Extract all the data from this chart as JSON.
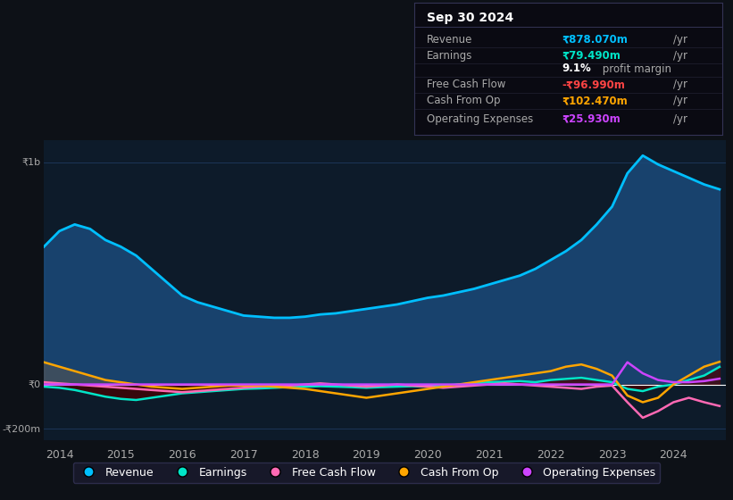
{
  "bg_color": "#0d1117",
  "plot_bg_color": "#0d1b2a",
  "grid_color": "#1e3a5f",
  "title_box": {
    "date": "Sep 30 2024",
    "rows": [
      {
        "label": "Revenue",
        "value": "₹878.070m /yr",
        "value_color": "#00bfff"
      },
      {
        "label": "Earnings",
        "value": "₹79.490m /yr",
        "value_color": "#00e5c8"
      },
      {
        "label": "",
        "value": "9.1% profit margin",
        "value_color": "#ffffff"
      },
      {
        "label": "Free Cash Flow",
        "value": "-₹96.990m /yr",
        "value_color": "#ff4444"
      },
      {
        "label": "Cash From Op",
        "value": "₹102.470m /yr",
        "value_color": "#ffa500"
      },
      {
        "label": "Operating Expenses",
        "value": "₹25.930m /yr",
        "value_color": "#cc44ff"
      }
    ]
  },
  "years": [
    2013.75,
    2014.0,
    2014.25,
    2014.5,
    2014.75,
    2015.0,
    2015.25,
    2015.5,
    2015.75,
    2016.0,
    2016.25,
    2016.5,
    2016.75,
    2017.0,
    2017.25,
    2017.5,
    2017.75,
    2018.0,
    2018.25,
    2018.5,
    2018.75,
    2019.0,
    2019.25,
    2019.5,
    2019.75,
    2020.0,
    2020.25,
    2020.5,
    2020.75,
    2021.0,
    2021.25,
    2021.5,
    2021.75,
    2022.0,
    2022.25,
    2022.5,
    2022.75,
    2023.0,
    2023.25,
    2023.5,
    2023.75,
    2024.0,
    2024.25,
    2024.5,
    2024.75
  ],
  "revenue": [
    620,
    690,
    720,
    700,
    650,
    620,
    580,
    520,
    460,
    400,
    370,
    350,
    330,
    310,
    305,
    300,
    300,
    305,
    315,
    320,
    330,
    340,
    350,
    360,
    375,
    390,
    400,
    415,
    430,
    450,
    470,
    490,
    520,
    560,
    600,
    650,
    720,
    800,
    950,
    1030,
    990,
    960,
    930,
    900,
    878
  ],
  "earnings": [
    -10,
    -15,
    -25,
    -40,
    -55,
    -65,
    -70,
    -60,
    -50,
    -40,
    -35,
    -30,
    -25,
    -20,
    -18,
    -15,
    -12,
    -10,
    -8,
    -10,
    -12,
    -15,
    -12,
    -10,
    -8,
    -10,
    -5,
    0,
    5,
    10,
    12,
    15,
    10,
    20,
    25,
    30,
    20,
    10,
    -20,
    -30,
    -10,
    0,
    20,
    40,
    79
  ],
  "free_cash_flow": [
    10,
    5,
    0,
    -5,
    -10,
    -15,
    -20,
    -25,
    -30,
    -35,
    -30,
    -25,
    -20,
    -15,
    -10,
    -8,
    -5,
    0,
    5,
    0,
    -5,
    -10,
    -5,
    0,
    -5,
    -10,
    -15,
    -10,
    -5,
    0,
    5,
    0,
    -5,
    -10,
    -15,
    -20,
    -10,
    -5,
    -80,
    -150,
    -120,
    -80,
    -60,
    -80,
    -97
  ],
  "cash_from_op": [
    100,
    80,
    60,
    40,
    20,
    10,
    0,
    -10,
    -15,
    -20,
    -15,
    -10,
    -5,
    -5,
    -5,
    -10,
    -15,
    -20,
    -30,
    -40,
    -50,
    -60,
    -50,
    -40,
    -30,
    -20,
    -10,
    0,
    10,
    20,
    30,
    40,
    50,
    60,
    80,
    90,
    70,
    40,
    -50,
    -80,
    -60,
    0,
    40,
    80,
    102
  ],
  "operating_expenses": [
    0,
    0,
    0,
    0,
    0,
    0,
    0,
    0,
    0,
    0,
    0,
    0,
    0,
    0,
    0,
    0,
    0,
    0,
    0,
    0,
    0,
    0,
    0,
    0,
    0,
    0,
    0,
    0,
    0,
    0,
    0,
    0,
    0,
    0,
    0,
    0,
    0,
    0,
    100,
    50,
    20,
    10,
    10,
    15,
    26
  ],
  "ylim": [
    -250,
    1100
  ],
  "yticks": [
    -200,
    0,
    1000
  ],
  "ytick_labels": [
    "-₹200m",
    "₹0",
    "₹1b"
  ],
  "legend_items": [
    {
      "label": "Revenue",
      "color": "#00bfff"
    },
    {
      "label": "Earnings",
      "color": "#00e5c8"
    },
    {
      "label": "Free Cash Flow",
      "color": "#ff69b4"
    },
    {
      "label": "Cash From Op",
      "color": "#ffa500"
    },
    {
      "label": "Operating Expenses",
      "color": "#cc44ff"
    }
  ],
  "revenue_fill_color": "#1a4a7a",
  "revenue_line_color": "#00bfff",
  "earnings_color": "#00e5c8",
  "earnings_fill_color": "#4a0000",
  "free_cash_flow_color": "#ff69b4",
  "cash_from_op_color": "#ffa500",
  "operating_expenses_color": "#cc44ff",
  "zero_line_color": "#ffffff",
  "text_color": "#aaaaaa"
}
